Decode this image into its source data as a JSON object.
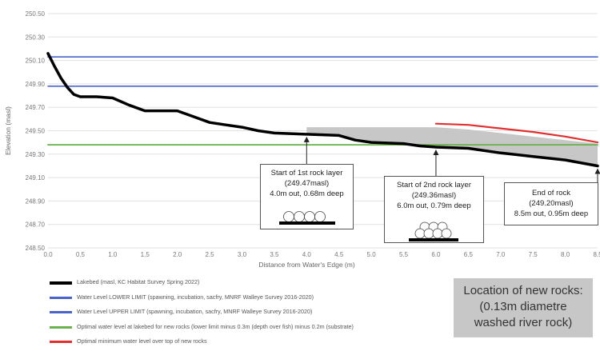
{
  "chart_data": {
    "type": "line",
    "xlabel": "Distance from Water's Edge (m)",
    "ylabel": "Elevation (masl)",
    "xlim": [
      0,
      8.5
    ],
    "ylim": [
      248.5,
      250.5
    ],
    "x_ticks": [
      "0.0",
      "0.5",
      "1.0",
      "1.5",
      "2.0",
      "2.5",
      "3.0",
      "3.5",
      "4.0",
      "4.5",
      "5.0",
      "5.5",
      "6.0",
      "6.5",
      "7.0",
      "7.5",
      "8.0",
      "8.5"
    ],
    "y_ticks": [
      "248.50",
      "248.70",
      "248.90",
      "249.10",
      "249.30",
      "249.50",
      "249.70",
      "249.90",
      "250.10",
      "250.30",
      "250.50"
    ],
    "grid": true,
    "legend_position": "bottom-left",
    "series": [
      {
        "name": "Lakebed (masl, KC Habitat Survey Spring 2022)",
        "color": "#000000",
        "points": [
          [
            0,
            250.16
          ],
          [
            0.1,
            250.05
          ],
          [
            0.2,
            249.95
          ],
          [
            0.3,
            249.87
          ],
          [
            0.4,
            249.81
          ],
          [
            0.5,
            249.79
          ],
          [
            0.75,
            249.79
          ],
          [
            1.0,
            249.78
          ],
          [
            1.25,
            249.72
          ],
          [
            1.5,
            249.67
          ],
          [
            1.75,
            249.67
          ],
          [
            2.0,
            249.67
          ],
          [
            2.25,
            249.62
          ],
          [
            2.5,
            249.57
          ],
          [
            2.75,
            249.55
          ],
          [
            3.0,
            249.53
          ],
          [
            3.25,
            249.5
          ],
          [
            3.5,
            249.48
          ],
          [
            4.0,
            249.47
          ],
          [
            4.5,
            249.46
          ],
          [
            4.75,
            249.42
          ],
          [
            5.0,
            249.4
          ],
          [
            5.5,
            249.39
          ],
          [
            5.75,
            249.37
          ],
          [
            6.0,
            249.36
          ],
          [
            6.5,
            249.35
          ],
          [
            7.0,
            249.31
          ],
          [
            7.5,
            249.28
          ],
          [
            8.0,
            249.25
          ],
          [
            8.5,
            249.2
          ]
        ]
      },
      {
        "name": "Water Level LOWER LIMIT (spawning, incubation, sacfry, MNRF Walleye Survey 2016-2020)",
        "color": "#4a63c9",
        "points": [
          [
            0,
            249.88
          ],
          [
            8.5,
            249.88
          ]
        ]
      },
      {
        "name": "Water Level UPPER LIMIT (spawning, incubation, sacfry, MNRF Walleye Survey 2016-2020)",
        "color": "#4a63c9",
        "points": [
          [
            0,
            250.13
          ],
          [
            8.5,
            250.13
          ]
        ]
      },
      {
        "name": "Optimal water level at lakebed for new rocks (lower limit minus 0.3m (depth over fish) minus 0.2m (substrate)",
        "color": "#6ab04c",
        "points": [
          [
            0,
            249.38
          ],
          [
            8.5,
            249.38
          ]
        ]
      },
      {
        "name": "Optimal minimum water level over top of new rocks",
        "color": "#e03030",
        "points": [
          [
            6.0,
            249.56
          ],
          [
            6.5,
            249.55
          ],
          [
            7.0,
            249.52
          ],
          [
            7.5,
            249.49
          ],
          [
            8.0,
            249.45
          ],
          [
            8.5,
            249.4
          ]
        ]
      }
    ],
    "rock_area": {
      "color": "#c7c7c7",
      "top": [
        [
          4.0,
          249.53
        ],
        [
          6.0,
          249.53
        ],
        [
          6.5,
          249.51
        ],
        [
          7.0,
          249.48
        ],
        [
          7.5,
          249.45
        ],
        [
          8.0,
          249.42
        ],
        [
          8.5,
          249.39
        ]
      ],
      "bottom": [
        [
          4.0,
          249.47
        ],
        [
          4.5,
          249.46
        ],
        [
          4.75,
          249.42
        ],
        [
          5.0,
          249.4
        ],
        [
          5.5,
          249.39
        ],
        [
          5.75,
          249.37
        ],
        [
          6.0,
          249.36
        ],
        [
          6.5,
          249.35
        ],
        [
          7.0,
          249.31
        ],
        [
          7.5,
          249.28
        ],
        [
          8.0,
          249.25
        ],
        [
          8.5,
          249.2
        ]
      ]
    },
    "annotations": [
      {
        "id": "rock1",
        "lines": [
          "Start of 1st rock layer",
          "(249.47masl)",
          "4.0m out, 0.68m deep"
        ],
        "x": 4.0,
        "y": 249.47,
        "icon": "single-layer"
      },
      {
        "id": "rock2",
        "lines": [
          "Start of 2nd rock layer",
          "(249.36masl)",
          "6.0m out, 0.79m deep"
        ],
        "x": 6.0,
        "y": 249.36,
        "icon": "double-layer"
      },
      {
        "id": "rock3",
        "lines": [
          "End of rock",
          "(249.20masl)",
          "8.5m out, 0.95m deep"
        ],
        "x": 8.5,
        "y": 249.2,
        "icon": "none"
      }
    ]
  },
  "info_box": {
    "lines": [
      "Location of new rocks:",
      "(0.13m diametre",
      "washed river rock)"
    ]
  }
}
